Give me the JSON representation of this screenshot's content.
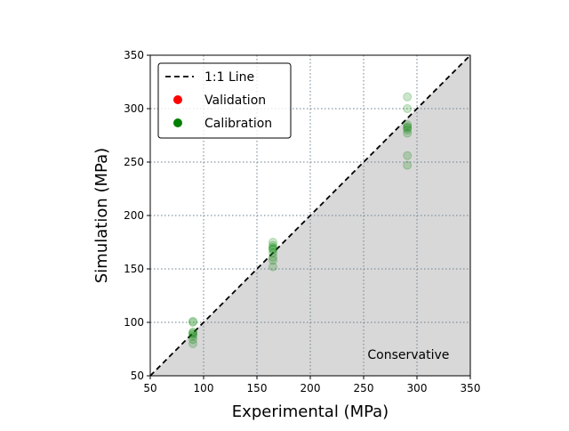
{
  "chart_data": {
    "type": "scatter",
    "xlabel": "Experimental (MPa)",
    "ylabel": "Simulation (MPa)",
    "xlim": [
      50,
      350
    ],
    "ylim": [
      50,
      350
    ],
    "xticks": [
      50,
      100,
      150,
      200,
      250,
      300,
      350
    ],
    "yticks": [
      50,
      100,
      150,
      200,
      250,
      300,
      350
    ],
    "grid": true,
    "legend_position": "top-left",
    "annotation": "Conservative",
    "shaded_region": "below 1:1 line",
    "colors": {
      "line": "#000000",
      "validation": "#ff0000",
      "calibration": "#008000",
      "shade": "#d8d8d8",
      "grid": "#6b7f8f"
    },
    "series": [
      {
        "name": "1:1 Line",
        "kind": "line",
        "x": [
          50,
          350
        ],
        "y": [
          50,
          350
        ]
      },
      {
        "name": "Validation",
        "kind": "scatter",
        "x": [],
        "y": []
      },
      {
        "name": "Calibration",
        "kind": "scatter",
        "x": [
          90,
          90,
          90,
          90,
          90,
          90,
          90,
          90,
          165,
          165,
          165,
          165,
          165,
          165,
          165,
          165,
          165,
          291,
          291,
          291,
          291,
          291,
          291,
          291,
          291,
          291
        ],
        "y": [
          80,
          84,
          87,
          89,
          90,
          91,
          100,
          101,
          152,
          158,
          161,
          165,
          168,
          169,
          170,
          172,
          175,
          247,
          256,
          277,
          280,
          282,
          283,
          285,
          300,
          311
        ]
      }
    ]
  }
}
